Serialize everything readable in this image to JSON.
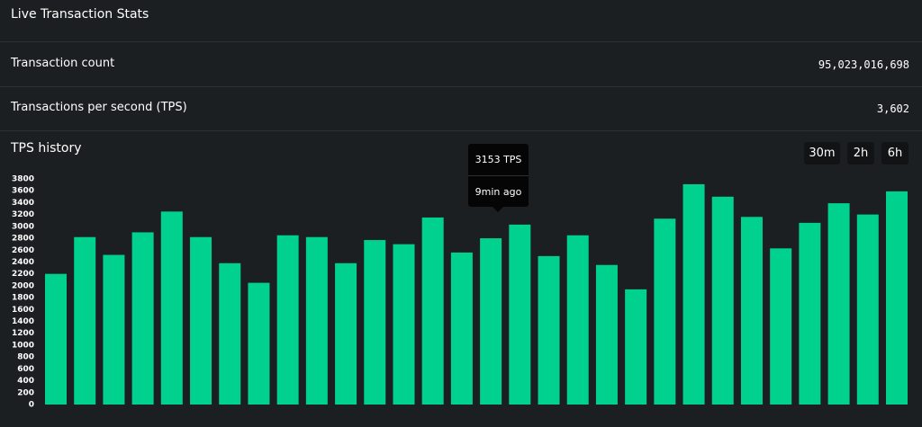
{
  "header": {
    "title": "Live Transaction Stats"
  },
  "stats": [
    {
      "label": "Transaction count",
      "value": "95,023,016,698"
    },
    {
      "label": "Transactions per second (TPS)",
      "value": "3,602"
    }
  ],
  "chart_data": {
    "type": "bar",
    "title": "TPS history",
    "ranges": [
      "30m",
      "2h",
      "6h"
    ],
    "tooltip": {
      "primary": "3153 TPS",
      "secondary": "9min ago"
    },
    "color": "#00d18c",
    "values": [
      2200,
      2820,
      2520,
      2900,
      3250,
      2820,
      2380,
      2050,
      2850,
      2820,
      2380,
      2770,
      2700,
      3150,
      2560,
      2800,
      3030,
      2500,
      2850,
      2350,
      1940,
      3130,
      3710,
      3500,
      3160,
      2630,
      3060,
      3390,
      3200,
      3590
    ],
    "ylim": [
      0,
      3800
    ],
    "yticks": [
      0,
      200,
      400,
      600,
      800,
      1000,
      1200,
      1400,
      1600,
      1800,
      2000,
      2200,
      2400,
      2600,
      2800,
      3000,
      3200,
      3400,
      3600,
      3800
    ]
  }
}
